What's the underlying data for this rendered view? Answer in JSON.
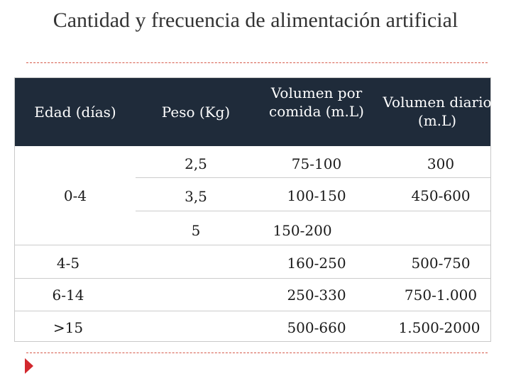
{
  "title": "Cantidad y frecuencia de alimentación artificial",
  "table": {
    "headers": [
      "Edad (días)",
      "Peso (Kg)",
      "Volumen por comida (m.L)",
      "Volumen diario (m.L)"
    ],
    "header_bg": "#1f2b3a",
    "rows": [
      {
        "edad": "",
        "peso": "2,5",
        "vol_comida": "75-100",
        "vol_diario": "300"
      },
      {
        "edad": "0-4",
        "peso": "3,5",
        "vol_comida": "100-150",
        "vol_diario": "450-600"
      },
      {
        "edad": "",
        "peso": "5",
        "vol_comida": "150-200",
        "vol_diario": ""
      },
      {
        "edad": "4-5",
        "peso": "",
        "vol_comida": "160-250",
        "vol_diario": "500-750"
      },
      {
        "edad": "6-14",
        "peso": "",
        "vol_comida": "250-330",
        "vol_diario": "750-1.000"
      },
      {
        "edad": ">15",
        "peso": "",
        "vol_comida": "500-660",
        "vol_diario": "1.500-2000"
      }
    ]
  },
  "accent_color": "#d2282e",
  "icons": {
    "next": "play-arrow-icon"
  }
}
